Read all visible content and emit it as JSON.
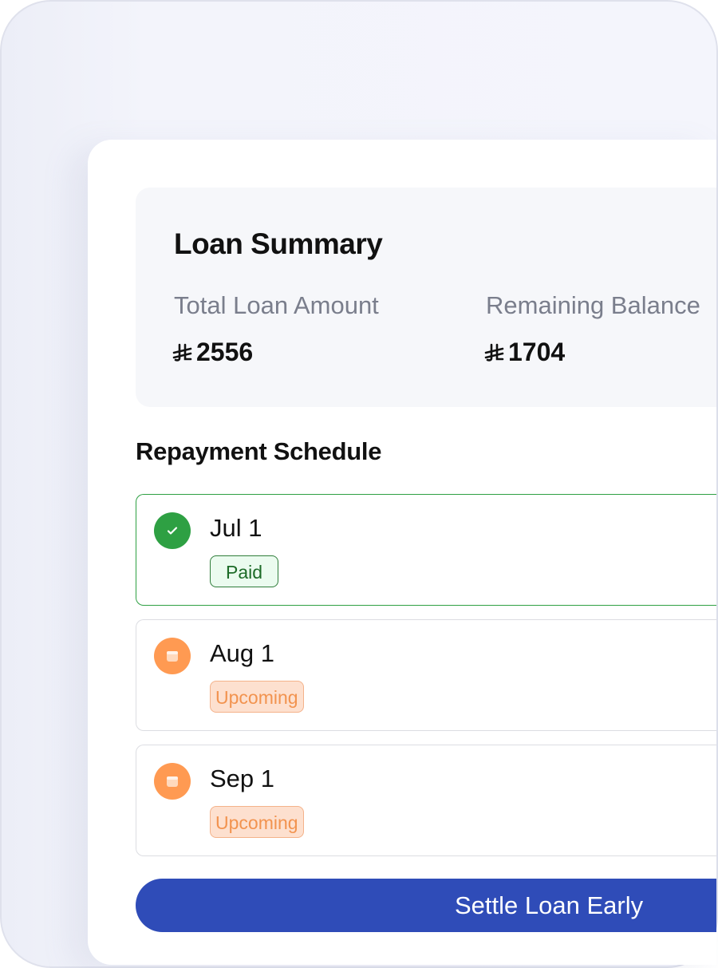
{
  "summary": {
    "title": "Loan Summary",
    "currency_icon": "riyal-currency-icon",
    "total_label": "Total  Loan Amount",
    "total_value": "2556",
    "remaining_label": "Remaining Balance",
    "remaining_value": "1704"
  },
  "schedule": {
    "title": "Repayment Schedule",
    "items": [
      {
        "date": "Jul 1",
        "status": "Paid",
        "icon": "check-circle-icon"
      },
      {
        "date": "Aug 1",
        "status": "Upcoming",
        "icon": "calendar-icon"
      },
      {
        "date": "Sep 1",
        "status": "Upcoming",
        "icon": "calendar-icon"
      }
    ]
  },
  "action": {
    "settle_label": "Settle Loan Early"
  },
  "colors": {
    "primary": "#2f4cb8",
    "paid": "#2ea043",
    "upcoming": "#ff9a52"
  }
}
